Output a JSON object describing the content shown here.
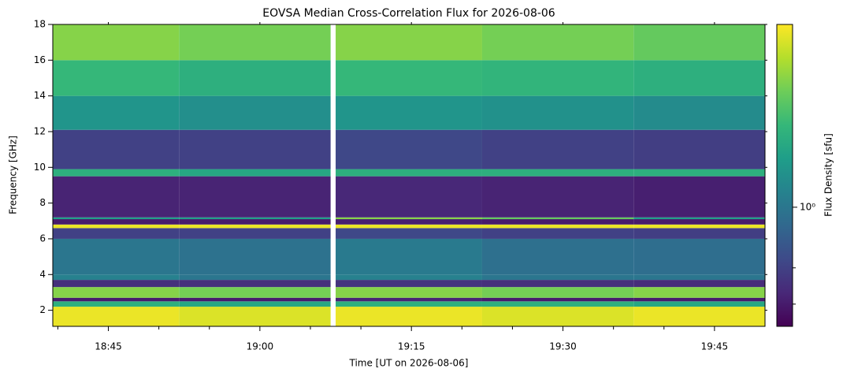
{
  "chart_data": {
    "type": "heatmap",
    "title": "EOVSA Median Cross-Correlation Flux for 2026-08-06",
    "xlabel": "Time [UT on 2026-08-06]",
    "ylabel": "Frequency [GHz]",
    "colorbar_label": "Flux Density [sfu]",
    "colormap": "viridis",
    "clim": [
      0.645,
      1.96
    ],
    "color_log_scale": true,
    "cticks": [
      {
        "value": 1,
        "label": "10⁰"
      }
    ],
    "cminorticks": [
      0.7,
      0.8
    ],
    "xlim": [
      "18:39:30",
      "19:50"
    ],
    "xticks": [
      "18:45",
      "19:00",
      "19:15",
      "19:30",
      "19:45"
    ],
    "xminorticks": [
      "18:40",
      "18:50",
      "18:55",
      "19:05",
      "19:10",
      "19:20",
      "19:25",
      "19:35",
      "19:40"
    ],
    "ylim": [
      1.1,
      18
    ],
    "yticks": [
      2,
      4,
      6,
      8,
      10,
      12,
      14,
      16,
      18
    ],
    "x_edges": [
      "18:39:30",
      "18:52",
      "19:07",
      "19:07:30",
      "19:22",
      "19:37",
      "19:50"
    ],
    "y_edges": [
      1.1,
      2.2,
      2.5,
      2.7,
      3.3,
      3.7,
      4.0,
      6.0,
      6.6,
      6.8,
      7.1,
      7.2,
      9.5,
      9.9,
      12.1,
      14,
      16,
      18
    ],
    "z": [
      [
        1.9,
        1.85,
        null,
        1.9,
        1.85,
        1.9
      ],
      [
        1.3,
        1.25,
        null,
        1.3,
        1.3,
        1.25
      ],
      [
        0.7,
        0.7,
        null,
        0.72,
        0.7,
        0.7
      ],
      [
        1.6,
        1.55,
        null,
        1.6,
        1.55,
        1.6
      ],
      [
        0.75,
        0.75,
        null,
        0.76,
        0.75,
        0.74
      ],
      [
        1.05,
        1.0,
        null,
        1.05,
        1.0,
        1.0
      ],
      [
        1.0,
        0.98,
        null,
        1.02,
        0.97,
        0.96
      ],
      [
        0.8,
        0.8,
        null,
        0.82,
        0.8,
        0.79
      ],
      [
        1.9,
        1.9,
        null,
        1.9,
        1.9,
        1.9
      ],
      [
        0.7,
        0.7,
        null,
        0.71,
        0.7,
        0.7
      ],
      [
        1.2,
        1.2,
        null,
        1.6,
        1.5,
        1.2
      ],
      [
        0.72,
        0.72,
        null,
        0.73,
        0.72,
        0.71
      ],
      [
        1.3,
        1.25,
        null,
        1.3,
        1.3,
        1.3
      ],
      [
        0.8,
        0.8,
        null,
        0.82,
        0.8,
        0.79
      ],
      [
        1.15,
        1.12,
        null,
        1.15,
        1.13,
        1.1
      ],
      [
        1.35,
        1.3,
        null,
        1.35,
        1.33,
        1.3
      ],
      [
        1.6,
        1.55,
        null,
        1.6,
        1.55,
        1.5
      ]
    ]
  }
}
